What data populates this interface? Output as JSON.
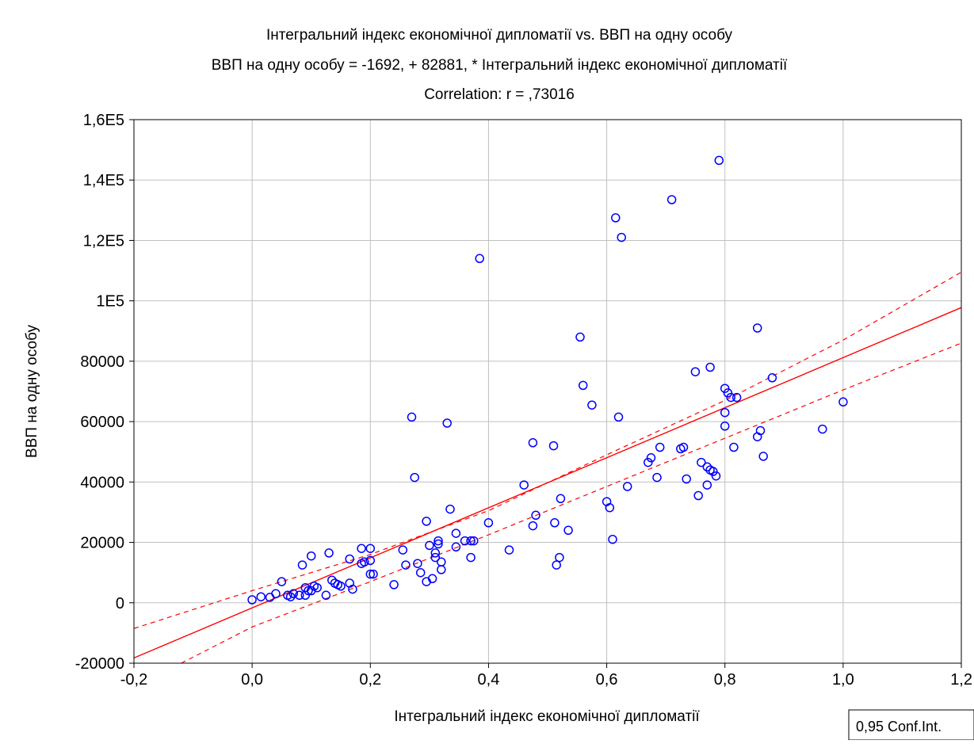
{
  "chart_data": {
    "type": "scatter",
    "title": "Інтегральний індекс економічної дипломатії vs. ВВП на одну особу",
    "subtitle": "ВВП на одну особу = -1692, + 82881, * Інтегральний індекс економічної дипломатії",
    "correlation_text": "Correlation: r = ,73016",
    "xlabel": "Інтегральний індекс економічної дипломатії",
    "ylabel": "ВВП на одну особу",
    "xlim": [
      -0.2,
      1.2
    ],
    "ylim": [
      -20000,
      160000
    ],
    "x_ticks": [
      {
        "value": -0.2,
        "label": "-0,2"
      },
      {
        "value": 0.0,
        "label": "0,0"
      },
      {
        "value": 0.2,
        "label": "0,2"
      },
      {
        "value": 0.4,
        "label": "0,4"
      },
      {
        "value": 0.6,
        "label": "0,6"
      },
      {
        "value": 0.8,
        "label": "0,8"
      },
      {
        "value": 1.0,
        "label": "1,0"
      },
      {
        "value": 1.2,
        "label": "1,2"
      }
    ],
    "y_ticks": [
      {
        "value": -20000,
        "label": "-20000"
      },
      {
        "value": 0,
        "label": "0"
      },
      {
        "value": 20000,
        "label": "20000"
      },
      {
        "value": 40000,
        "label": "40000"
      },
      {
        "value": 60000,
        "label": "60000"
      },
      {
        "value": 80000,
        "label": "80000"
      },
      {
        "value": 100000,
        "label": "1E5"
      },
      {
        "value": 120000,
        "label": "1,2E5"
      },
      {
        "value": 140000,
        "label": "1,4E5"
      },
      {
        "value": 160000,
        "label": "1,6E5"
      }
    ],
    "grid": true,
    "regression": {
      "intercept": -1692,
      "slope": 82881
    },
    "confidence_band": {
      "label": "0,95 Conf.Int.",
      "upper": [
        [
          -0.2,
          -8500
        ],
        [
          0.0,
          4000
        ],
        [
          0.2,
          16000
        ],
        [
          0.4,
          30500
        ],
        [
          0.6,
          49000
        ],
        [
          0.8,
          67000
        ],
        [
          1.0,
          87000
        ],
        [
          1.2,
          109500
        ]
      ],
      "lower": [
        [
          -0.12,
          -20000
        ],
        [
          0.0,
          -8000
        ],
        [
          0.2,
          7000
        ],
        [
          0.4,
          22500
        ],
        [
          0.6,
          38500
        ],
        [
          0.8,
          54500
        ],
        [
          1.0,
          70500
        ],
        [
          1.2,
          86000
        ]
      ]
    },
    "series": [
      {
        "color": "#0000ff",
        "points": [
          [
            0.0,
            1000
          ],
          [
            0.015,
            2000
          ],
          [
            0.03,
            1800
          ],
          [
            0.04,
            3000
          ],
          [
            0.05,
            7000
          ],
          [
            0.06,
            2500
          ],
          [
            0.065,
            2000
          ],
          [
            0.07,
            3000
          ],
          [
            0.08,
            2500
          ],
          [
            0.085,
            12500
          ],
          [
            0.09,
            5000
          ],
          [
            0.09,
            2500
          ],
          [
            0.095,
            4000
          ],
          [
            0.1,
            4000
          ],
          [
            0.105,
            5500
          ],
          [
            0.1,
            15500
          ],
          [
            0.11,
            5000
          ],
          [
            0.125,
            2500
          ],
          [
            0.13,
            16500
          ],
          [
            0.135,
            7500
          ],
          [
            0.14,
            6500
          ],
          [
            0.145,
            6000
          ],
          [
            0.15,
            5500
          ],
          [
            0.165,
            14500
          ],
          [
            0.165,
            6500
          ],
          [
            0.17,
            4500
          ],
          [
            0.185,
            18000
          ],
          [
            0.185,
            13000
          ],
          [
            0.19,
            13500
          ],
          [
            0.2,
            14000
          ],
          [
            0.2,
            18000
          ],
          [
            0.2,
            9500
          ],
          [
            0.205,
            9500
          ],
          [
            0.24,
            6000
          ],
          [
            0.255,
            17500
          ],
          [
            0.26,
            12500
          ],
          [
            0.27,
            61500
          ],
          [
            0.275,
            41500
          ],
          [
            0.28,
            13000
          ],
          [
            0.285,
            10000
          ],
          [
            0.295,
            7000
          ],
          [
            0.295,
            27000
          ],
          [
            0.3,
            19000
          ],
          [
            0.305,
            8000
          ],
          [
            0.31,
            15000
          ],
          [
            0.31,
            16500
          ],
          [
            0.315,
            19500
          ],
          [
            0.315,
            20500
          ],
          [
            0.32,
            13500
          ],
          [
            0.32,
            11000
          ],
          [
            0.33,
            59500
          ],
          [
            0.335,
            31000
          ],
          [
            0.345,
            18500
          ],
          [
            0.345,
            23000
          ],
          [
            0.36,
            20500
          ],
          [
            0.37,
            20500
          ],
          [
            0.37,
            15000
          ],
          [
            0.375,
            20500
          ],
          [
            0.385,
            114000
          ],
          [
            0.4,
            26500
          ],
          [
            0.435,
            17500
          ],
          [
            0.46,
            39000
          ],
          [
            0.475,
            25500
          ],
          [
            0.475,
            53000
          ],
          [
            0.48,
            29000
          ],
          [
            0.51,
            52000
          ],
          [
            0.512,
            26500
          ],
          [
            0.515,
            12500
          ],
          [
            0.52,
            15000
          ],
          [
            0.522,
            34500
          ],
          [
            0.535,
            24000
          ],
          [
            0.555,
            88000
          ],
          [
            0.56,
            72000
          ],
          [
            0.575,
            65500
          ],
          [
            0.6,
            33500
          ],
          [
            0.605,
            31500
          ],
          [
            0.61,
            21000
          ],
          [
            0.615,
            127500
          ],
          [
            0.62,
            61500
          ],
          [
            0.625,
            121000
          ],
          [
            0.635,
            38500
          ],
          [
            0.67,
            46500
          ],
          [
            0.675,
            48000
          ],
          [
            0.685,
            41500
          ],
          [
            0.69,
            51500
          ],
          [
            0.71,
            133500
          ],
          [
            0.725,
            51000
          ],
          [
            0.73,
            51500
          ],
          [
            0.735,
            41000
          ],
          [
            0.75,
            76500
          ],
          [
            0.755,
            35500
          ],
          [
            0.76,
            46500
          ],
          [
            0.77,
            39000
          ],
          [
            0.77,
            45000
          ],
          [
            0.775,
            78000
          ],
          [
            0.775,
            44000
          ],
          [
            0.78,
            43500
          ],
          [
            0.785,
            42000
          ],
          [
            0.79,
            146500
          ],
          [
            0.8,
            63000
          ],
          [
            0.8,
            58500
          ],
          [
            0.8,
            71000
          ],
          [
            0.805,
            69500
          ],
          [
            0.81,
            68000
          ],
          [
            0.815,
            51500
          ],
          [
            0.82,
            68000
          ],
          [
            0.855,
            91000
          ],
          [
            0.855,
            55000
          ],
          [
            0.86,
            57000
          ],
          [
            0.865,
            48500
          ],
          [
            0.88,
            74500
          ],
          [
            0.965,
            57500
          ],
          [
            1.0,
            66500
          ]
        ]
      }
    ]
  },
  "legend": {
    "label": "0,95 Conf.Int."
  },
  "colors": {
    "points": "#0000ff",
    "regression": "#ff0000",
    "grid": "#c0c0c0",
    "axis": "#000000"
  }
}
